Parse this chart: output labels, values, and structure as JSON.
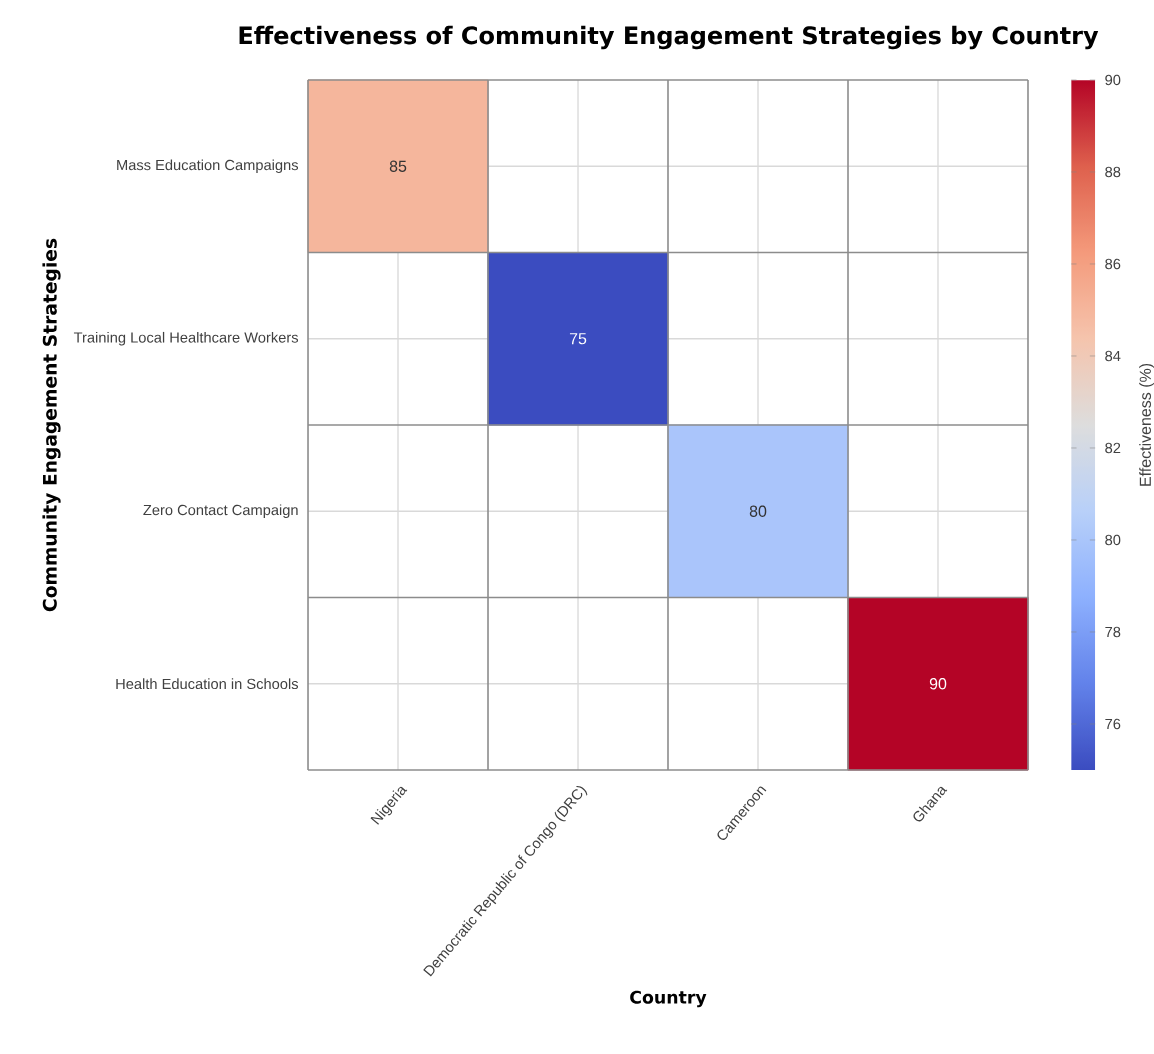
{
  "chart_data": {
    "type": "heatmap",
    "title": "Effectiveness of Community Engagement Strategies by Country",
    "xlabel": "Country",
    "ylabel": "Community Engagement Strategies",
    "clabel": "Effectiveness (%)",
    "categories": [
      "Nigeria",
      "Democratic Republic of Congo (DRC)",
      "Cameroon",
      "Ghana"
    ],
    "y_categories": [
      "Mass Education Campaigns",
      "Training Local Healthcare Workers",
      "Zero Contact Campaign",
      "Health Education in Schools"
    ],
    "cells": [
      [
        85,
        null,
        null,
        null
      ],
      [
        null,
        75,
        null,
        null
      ],
      [
        null,
        null,
        80,
        null
      ],
      [
        null,
        null,
        null,
        90
      ]
    ],
    "clim": [
      75,
      90
    ],
    "cticks": [
      76,
      78,
      80,
      82,
      84,
      86,
      88,
      90
    ],
    "data_labels": true,
    "grid": true
  }
}
